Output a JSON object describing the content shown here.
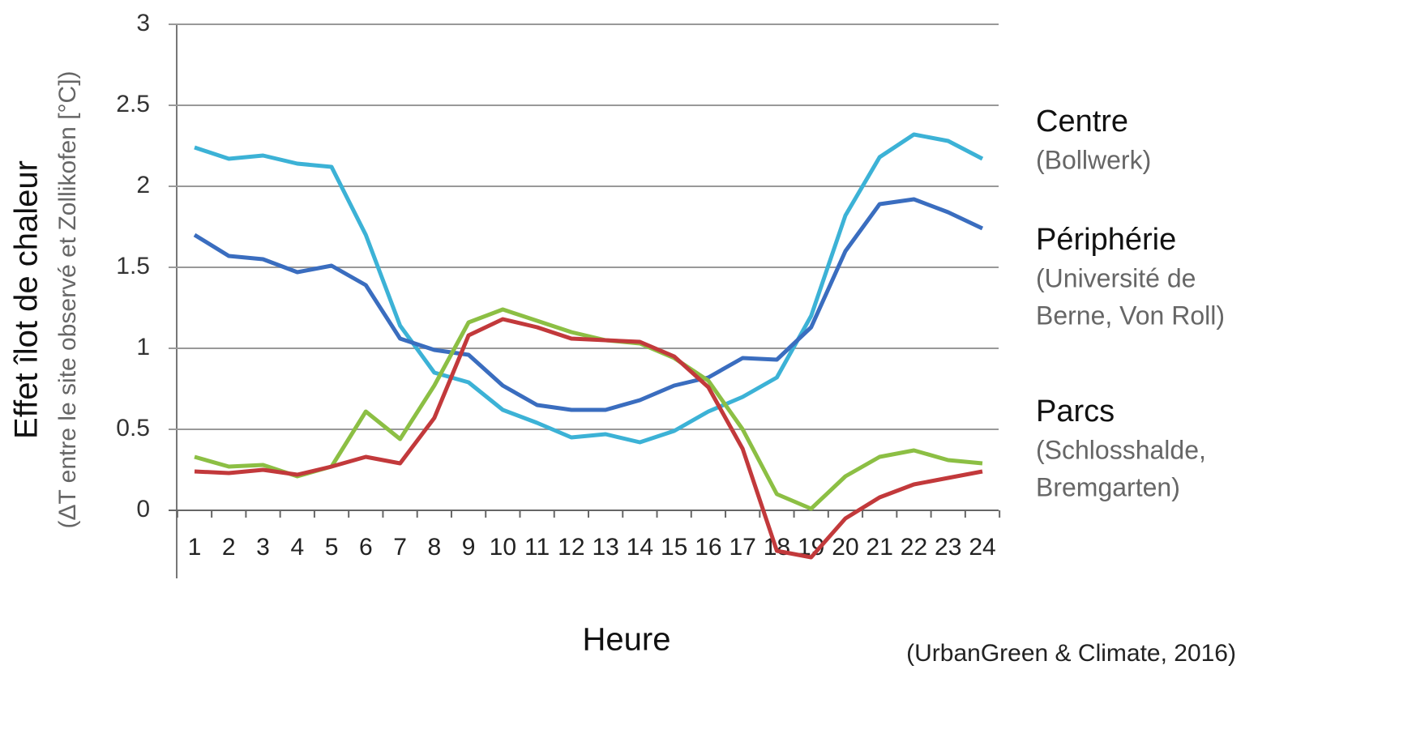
{
  "chart_data": {
    "type": "line",
    "y_label": "Effet îlot de chaleur",
    "y_sublabel": "(ΔT entre le site observé et Zollikofen [°C])",
    "x_label": "Heure",
    "source": "(UrbanGreen & Climate, 2016)",
    "categories": [
      "1",
      "2",
      "3",
      "4",
      "5",
      "6",
      "7",
      "8",
      "9",
      "10",
      "11",
      "12",
      "13",
      "14",
      "15",
      "16",
      "17",
      "18",
      "19",
      "20",
      "21",
      "22",
      "23",
      "24"
    ],
    "series": [
      {
        "color": "#3cb2d6",
        "values": [
          2.24,
          2.17,
          2.19,
          2.14,
          2.12,
          1.7,
          1.14,
          0.85,
          0.79,
          0.62,
          0.54,
          0.45,
          0.47,
          0.42,
          0.49,
          0.61,
          0.7,
          0.82,
          1.2,
          1.82,
          2.18,
          2.32,
          2.28,
          2.17
        ]
      },
      {
        "color": "#3a6dbf",
        "values": [
          1.7,
          1.57,
          1.55,
          1.47,
          1.51,
          1.39,
          1.06,
          0.99,
          0.96,
          0.77,
          0.65,
          0.62,
          0.62,
          0.68,
          0.77,
          0.82,
          0.94,
          0.93,
          1.13,
          1.6,
          1.89,
          1.92,
          1.84,
          1.74
        ]
      },
      {
        "color": "#8cbf44",
        "values": [
          0.33,
          0.27,
          0.28,
          0.21,
          0.27,
          0.61,
          0.44,
          0.77,
          1.16,
          1.24,
          1.17,
          1.1,
          1.05,
          1.03,
          0.94,
          0.8,
          0.5,
          0.1,
          0.01,
          0.21,
          0.33,
          0.37,
          0.31,
          0.29
        ]
      },
      {
        "color": "#c2393b",
        "values": [
          0.24,
          0.23,
          0.25,
          0.22,
          0.27,
          0.33,
          0.29,
          0.57,
          1.08,
          1.18,
          1.13,
          1.06,
          1.05,
          1.04,
          0.95,
          0.76,
          0.38,
          -0.25,
          -0.29,
          -0.05,
          0.08,
          0.16,
          0.2,
          0.24
        ]
      }
    ],
    "ylim": [
      -0.42,
      3
    ],
    "yticks": [
      0,
      0.5,
      1,
      1.5,
      2,
      2.5,
      3
    ],
    "grid": true,
    "annotations": [
      {
        "label": "Centre",
        "detail": [
          "(Bollwerk)"
        ]
      },
      {
        "label": "Périphérie",
        "detail": [
          "(Université de",
          "Berne, Von Roll)"
        ]
      },
      {
        "label": "Parcs",
        "detail": [
          "(Schlosshalde,",
          "Bremgarten)"
        ]
      }
    ]
  }
}
